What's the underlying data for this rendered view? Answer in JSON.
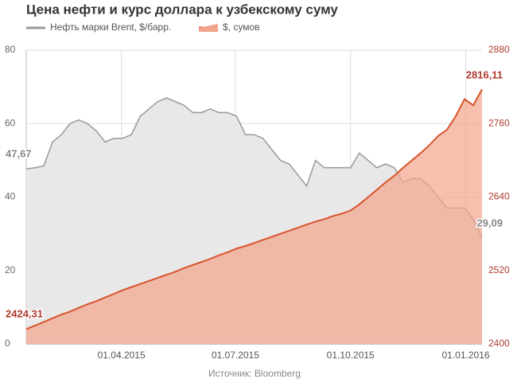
{
  "chart_data": {
    "type": "area",
    "title": "Цена нефти и курс доллара к узбекскому суму",
    "source": "Источник: Bloomberg",
    "x": [
      "2015-01-15",
      "2015-01-22",
      "2015-01-29",
      "2015-02-05",
      "2015-02-12",
      "2015-02-19",
      "2015-02-26",
      "2015-03-05",
      "2015-03-12",
      "2015-03-19",
      "2015-03-26",
      "2015-04-02",
      "2015-04-09",
      "2015-04-16",
      "2015-04-23",
      "2015-04-30",
      "2015-05-07",
      "2015-05-14",
      "2015-05-21",
      "2015-05-28",
      "2015-06-04",
      "2015-06-11",
      "2015-06-18",
      "2015-06-25",
      "2015-07-02",
      "2015-07-09",
      "2015-07-16",
      "2015-07-23",
      "2015-07-30",
      "2015-08-06",
      "2015-08-13",
      "2015-08-20",
      "2015-08-27",
      "2015-09-03",
      "2015-09-10",
      "2015-09-17",
      "2015-09-24",
      "2015-10-01",
      "2015-10-08",
      "2015-10-15",
      "2015-10-22",
      "2015-10-29",
      "2015-11-05",
      "2015-11-12",
      "2015-11-19",
      "2015-11-26",
      "2015-12-03",
      "2015-12-10",
      "2015-12-17",
      "2015-12-24",
      "2015-12-31",
      "2016-01-07",
      "2016-01-14"
    ],
    "xlim": [
      "2015-01-15",
      "2016-01-14"
    ],
    "xticks": [
      {
        "value": "2015-04-01",
        "label": "01.04.2015"
      },
      {
        "value": "2015-07-01",
        "label": "01.07.2015"
      },
      {
        "value": "2015-10-01",
        "label": "01.10.2015"
      },
      {
        "value": "2016-01-01",
        "label": "01.01.2016"
      }
    ],
    "ylim": [
      0,
      80
    ],
    "yticks": [
      0,
      20,
      40,
      60,
      80
    ],
    "y2lim": [
      2400,
      2880
    ],
    "y2ticks": [
      2400,
      2520,
      2640,
      2760,
      2880
    ],
    "grid": true,
    "series": [
      {
        "name": "Нефть марки Brent, $/барр.",
        "color": "#999999",
        "fill": "#e8e8e8",
        "values": [
          47.67,
          48,
          48.5,
          55,
          57,
          60,
          61,
          60,
          58,
          55,
          56,
          56,
          57,
          62,
          64,
          66,
          67,
          66,
          65,
          63,
          63,
          64,
          63,
          63,
          62,
          57,
          57,
          56,
          53,
          50,
          49,
          46,
          43,
          50,
          48,
          48,
          48,
          48,
          52,
          50,
          48,
          49,
          48,
          44,
          45,
          45,
          43,
          40,
          37,
          37,
          37,
          34,
          29.09
        ],
        "value_labels": [
          "47,67",
          null,
          null,
          null,
          null,
          null,
          null,
          null,
          null,
          null,
          null,
          null,
          null,
          null,
          null,
          null,
          null,
          null,
          null,
          null,
          null,
          null,
          null,
          null,
          null,
          null,
          null,
          null,
          null,
          null,
          null,
          null,
          null,
          null,
          null,
          null,
          null,
          null,
          null,
          null,
          null,
          null,
          null,
          null,
          null,
          null,
          null,
          null,
          null,
          null,
          null,
          null,
          "29,09"
        ]
      },
      {
        "name": "$, сумов",
        "color": "#d9532c",
        "fill": "#f2a48c",
        "axis": "y2",
        "values": [
          2424.31,
          2430,
          2436,
          2442,
          2448,
          2453,
          2459,
          2465,
          2470,
          2476,
          2482,
          2488,
          2493,
          2498,
          2503,
          2508,
          2513,
          2518,
          2524,
          2529,
          2534,
          2539,
          2545,
          2550,
          2556,
          2560,
          2565,
          2570,
          2575,
          2580,
          2585,
          2590,
          2595,
          2600,
          2604,
          2609,
          2613,
          2618,
          2628,
          2640,
          2652,
          2664,
          2675,
          2688,
          2700,
          2712,
          2725,
          2740,
          2750,
          2772,
          2800,
          2790,
          2816.11
        ],
        "value_labels": [
          "2424,31",
          null,
          null,
          null,
          null,
          null,
          null,
          null,
          null,
          null,
          null,
          null,
          null,
          null,
          null,
          null,
          null,
          null,
          null,
          null,
          null,
          null,
          null,
          null,
          null,
          null,
          null,
          null,
          null,
          null,
          null,
          null,
          null,
          null,
          null,
          null,
          null,
          null,
          null,
          null,
          null,
          null,
          null,
          null,
          null,
          null,
          null,
          null,
          null,
          null,
          null,
          null,
          "2816,11"
        ]
      }
    ]
  }
}
